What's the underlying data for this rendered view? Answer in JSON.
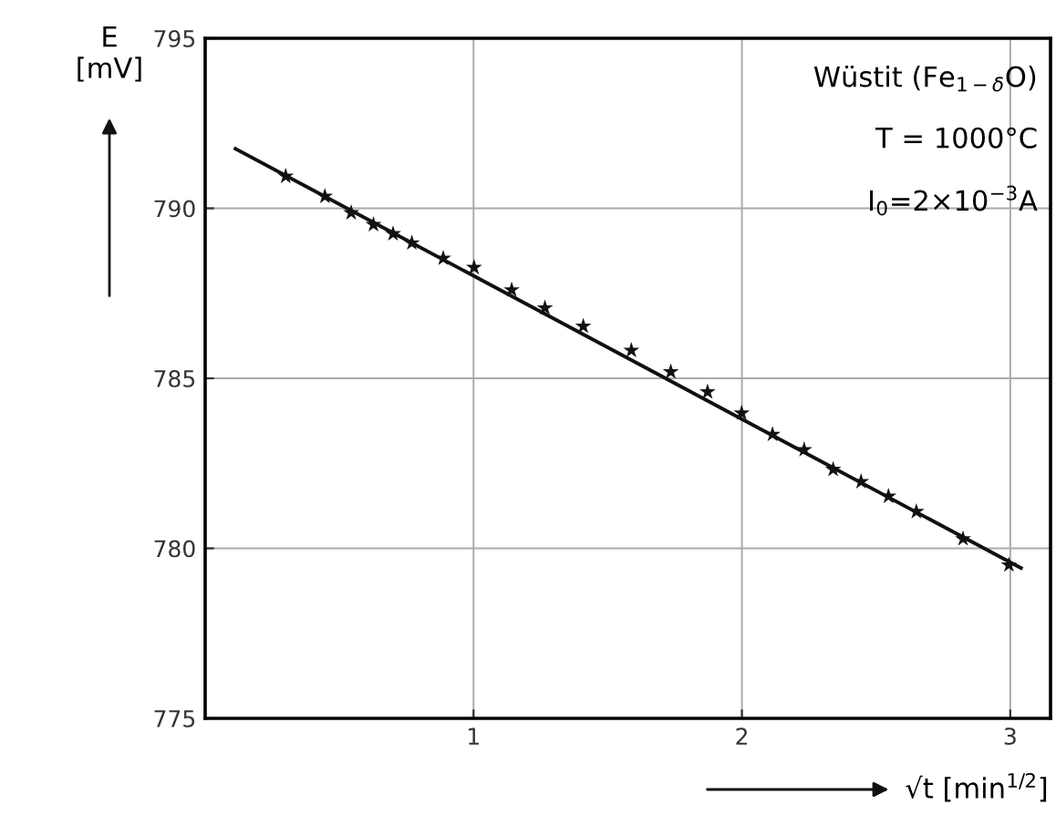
{
  "chart_data": {
    "type": "scatter",
    "xlabel": "√t [min$^{1/2}$]",
    "ylabel": "E\n[mV]",
    "xlim": [
      0,
      3.15
    ],
    "ylim": [
      775,
      795
    ],
    "xticks": [
      1,
      2,
      3
    ],
    "yticks": [
      775,
      780,
      785,
      790,
      795
    ],
    "grid": true,
    "marker": "star",
    "series": [
      {
        "color": "#111111",
        "x": [
          0.3,
          0.446,
          0.544,
          0.627,
          0.7,
          0.77,
          0.887,
          1.002,
          1.142,
          1.266,
          1.409,
          1.588,
          1.735,
          1.872,
          1.999,
          2.114,
          2.232,
          2.34,
          2.444,
          2.546,
          2.65,
          2.824,
          2.995
        ],
        "values": [
          790.94,
          790.35,
          789.87,
          789.52,
          789.25,
          788.98,
          788.53,
          788.26,
          787.6,
          787.07,
          786.53,
          785.82,
          785.19,
          784.6,
          783.98,
          783.35,
          782.9,
          782.32,
          781.96,
          781.53,
          781.08,
          780.28,
          779.51
        ]
      },
      {
        "type": "line",
        "color": "#111111",
        "marker": "none",
        "x": [
          0.113,
          3.04
        ],
        "values": [
          791.75,
          779.42
        ]
      }
    ],
    "annotations": [
      "Wüstit (Fe$_{1−δ}$O)",
      "T = 1000°C",
      "I$_{0}$=2×10$^{−3}$A"
    ]
  }
}
